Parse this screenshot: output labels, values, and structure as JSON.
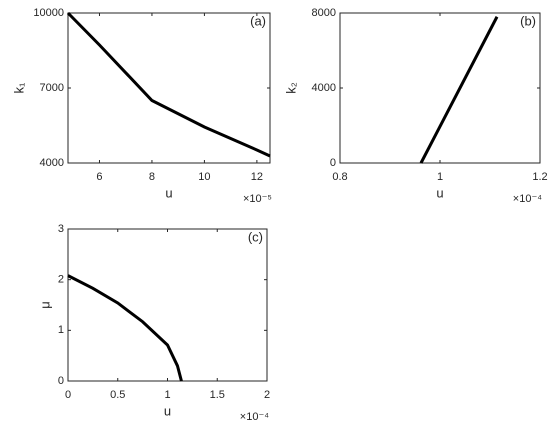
{
  "chart_data": [
    {
      "type": "line",
      "panel_label": "(a)",
      "xlabel": "u",
      "ylabel": "k₁",
      "x_exponent": "×10⁻⁵",
      "x": [
        4.8,
        6,
        8,
        10,
        12,
        12.5
      ],
      "series": [
        {
          "color": "#000000",
          "values": [
            10000,
            8720,
            6500,
            5440,
            4520,
            4280
          ]
        }
      ],
      "xlim": [
        4.8,
        12.5
      ],
      "xticks": [
        6,
        8,
        10,
        12
      ],
      "ylim": [
        4000,
        10000
      ],
      "yticks": [
        4000,
        7000,
        10000
      ]
    },
    {
      "type": "line",
      "panel_label": "(b)",
      "xlabel": "u",
      "ylabel": "k₂",
      "x_exponent": "×10⁻⁴",
      "x": [
        0.962,
        1.114
      ],
      "series": [
        {
          "color": "#000000",
          "values": [
            0,
            7800
          ]
        }
      ],
      "xlim": [
        0.8,
        1.2
      ],
      "xticks": [
        0.8,
        1,
        1.2
      ],
      "ylim": [
        0,
        8000
      ],
      "yticks": [
        0,
        4000,
        8000
      ]
    },
    {
      "type": "line",
      "panel_label": "(c)",
      "xlabel": "u",
      "ylabel": "μ",
      "x_exponent": "×10⁻⁴",
      "x": [
        0,
        0.25,
        0.5,
        0.75,
        1.0,
        1.1,
        1.14
      ],
      "series": [
        {
          "color": "#000000",
          "values": [
            2.08,
            1.83,
            1.54,
            1.17,
            0.71,
            0.3,
            0
          ]
        }
      ],
      "xlim": [
        0,
        2
      ],
      "xticks": [
        0,
        0.5,
        1,
        1.5,
        2
      ],
      "ylim": [
        0,
        3
      ],
      "yticks": [
        0,
        1,
        2,
        3
      ]
    }
  ]
}
